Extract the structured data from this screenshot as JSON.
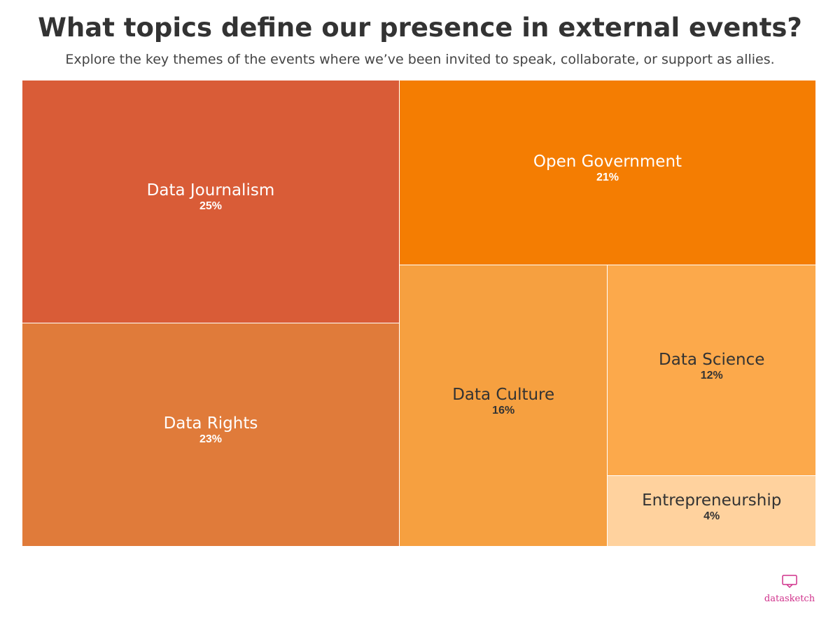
{
  "header": {
    "title": "What topics define our presence in external events?",
    "subtitle": "Explore the key themes of the events where we’ve been invited to speak, collaborate, or support as allies."
  },
  "chart_data": {
    "type": "treemap",
    "items": [
      {
        "name": "Data Journalism",
        "value": 25,
        "value_label": "25%",
        "color": "#d95c37"
      },
      {
        "name": "Data Rights",
        "value": 23,
        "value_label": "23%",
        "color": "#e07b3a"
      },
      {
        "name": "Open Government",
        "value": 21,
        "value_label": "21%",
        "color": "#f47d02"
      },
      {
        "name": "Data Culture",
        "value": 16,
        "value_label": "16%",
        "color": "#f6a040"
      },
      {
        "name": "Data Science",
        "value": 12,
        "value_label": "12%",
        "color": "#fca94b"
      },
      {
        "name": "Entrepreneurship",
        "value": 4,
        "value_label": "4%",
        "color": "#ffd29e"
      }
    ]
  },
  "branding": {
    "logo_text": "datasketch",
    "logo_icon": "chat-screen-icon",
    "logo_color": "#d0318b"
  }
}
